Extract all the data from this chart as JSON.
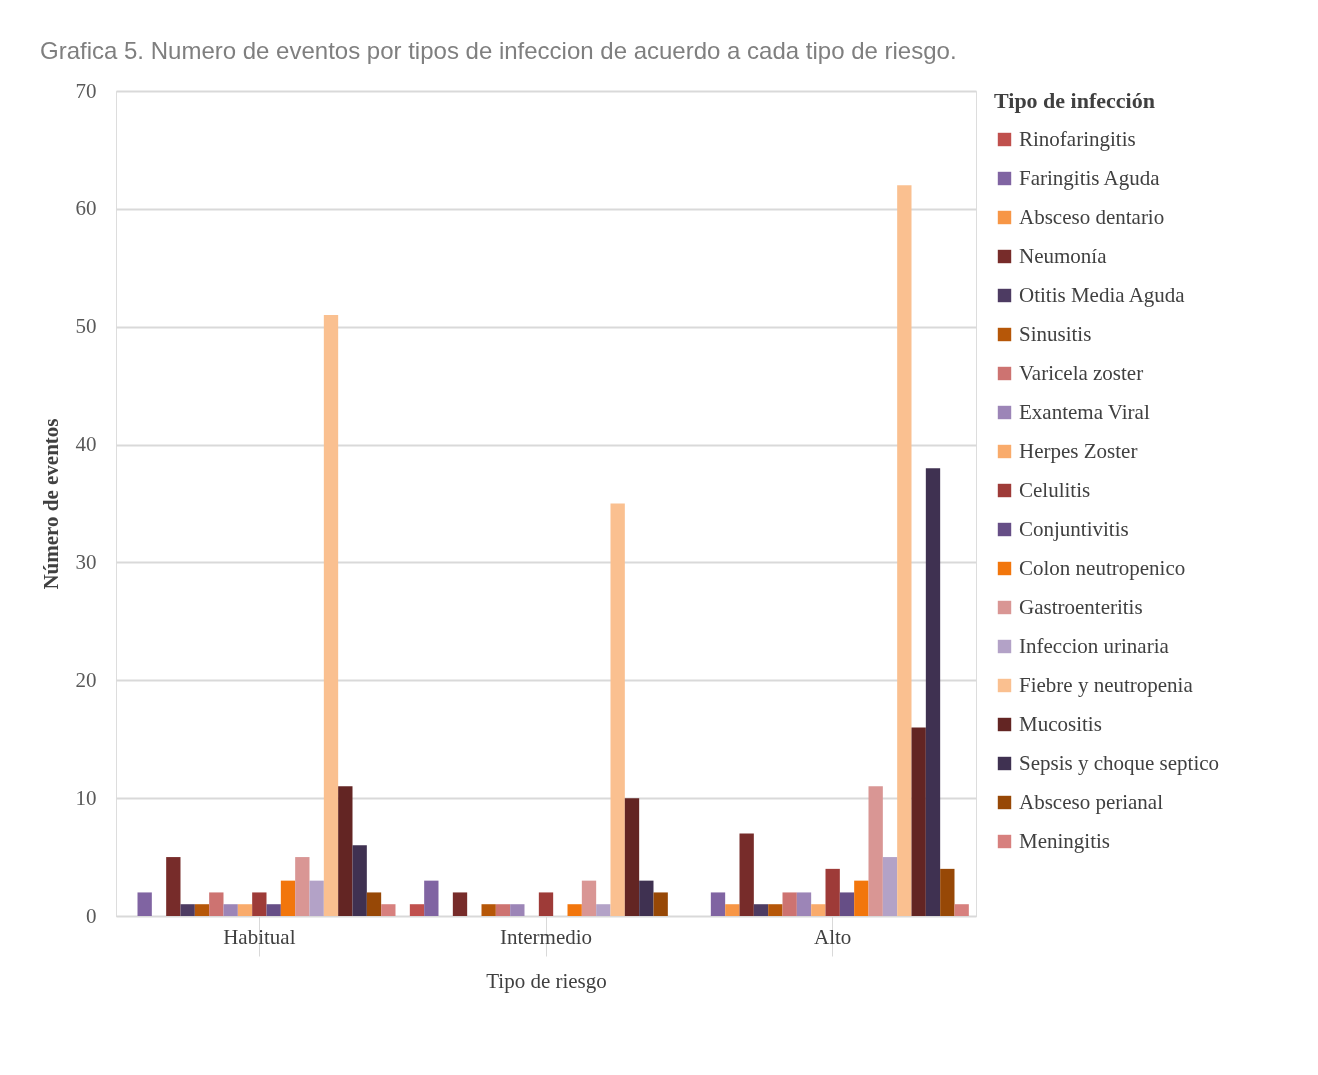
{
  "chart_data": {
    "type": "bar",
    "title": "Grafica 5. Numero de eventos por tipos de infeccion de acuerdo a cada tipo de riesgo.",
    "xlabel": "Tipo de riesgo",
    "ylabel": "Número de eventos",
    "legend_title": "Tipo de infección",
    "categories": [
      "Habitual",
      "Intermedio",
      "Alto"
    ],
    "series": [
      {
        "name": "Rinofaringitis",
        "color": "#c0504d",
        "values": [
          0,
          1,
          0
        ]
      },
      {
        "name": "Faringitis Aguda",
        "color": "#8064a2",
        "values": [
          2,
          3,
          2
        ]
      },
      {
        "name": "Absceso dentario",
        "color": "#f79646",
        "values": [
          0,
          0,
          1
        ]
      },
      {
        "name": "Neumonía",
        "color": "#772c2a",
        "values": [
          5,
          2,
          7
        ]
      },
      {
        "name": "Otitis Media Aguda",
        "color": "#4d3b62",
        "values": [
          1,
          0,
          1
        ]
      },
      {
        "name": "Sinusitis",
        "color": "#b65708",
        "values": [
          1,
          1,
          1
        ]
      },
      {
        "name": "Varicela zoster",
        "color": "#cd7371",
        "values": [
          2,
          1,
          2
        ]
      },
      {
        "name": "Exantema Viral",
        "color": "#9c85b7",
        "values": [
          1,
          1,
          2
        ]
      },
      {
        "name": "Herpes Zoster",
        "color": "#f9ab6b",
        "values": [
          1,
          0,
          1
        ]
      },
      {
        "name": "Celulitis",
        "color": "#9e3b38",
        "values": [
          2,
          2,
          4
        ]
      },
      {
        "name": "Conjuntivitis",
        "color": "#664e86",
        "values": [
          1,
          0,
          2
        ]
      },
      {
        "name": "Colon neutropenico",
        "color": "#f2760c",
        "values": [
          3,
          1,
          3
        ]
      },
      {
        "name": "Gastroenteritis",
        "color": "#d99694",
        "values": [
          5,
          3,
          11
        ]
      },
      {
        "name": "Infeccion urinaria",
        "color": "#b3a2c7",
        "values": [
          3,
          1,
          5
        ]
      },
      {
        "name": "Fiebre y neutropenia",
        "color": "#fac090",
        "values": [
          51,
          35,
          62
        ]
      },
      {
        "name": "Mucositis",
        "color": "#632523",
        "values": [
          11,
          10,
          16
        ]
      },
      {
        "name": "Sepsis y choque septico",
        "color": "#3f3151",
        "values": [
          6,
          3,
          38
        ]
      },
      {
        "name": "Absceso perianal",
        "color": "#974806",
        "values": [
          2,
          2,
          4
        ]
      },
      {
        "name": "Meningitis",
        "color": "#d7807e",
        "values": [
          1,
          0,
          1
        ]
      }
    ],
    "ylim": [
      0,
      70
    ],
    "yticks": [
      0,
      10,
      20,
      30,
      40,
      50,
      60,
      70
    ],
    "grid": "y",
    "legend": "right"
  }
}
